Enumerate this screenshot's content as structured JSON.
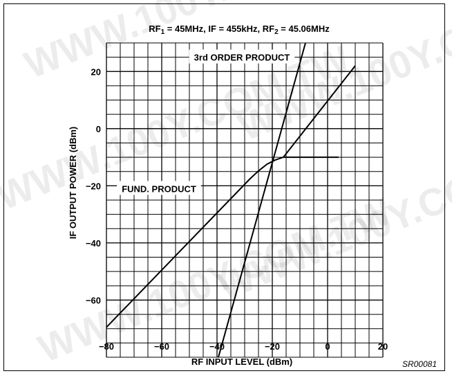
{
  "figure_code": "SR00081",
  "watermark_text": "WWW.100Y.COM.TW",
  "colors": {
    "line": "#000000",
    "grid": "#000000",
    "background": "#ffffff"
  },
  "chart_data": {
    "type": "line",
    "title_parts": [
      {
        "text": "RF",
        "sub": "1",
        "after": " = 45MHz, IF = 455kHz, RF"
      },
      {
        "text": "",
        "sub": "2",
        "after": " = 45.06MHz"
      }
    ],
    "xlabel": "RF INPUT LEVEL (dBm)",
    "ylabel": "IF OUTPUT POWER (dBm)",
    "xlim": [
      -80,
      20
    ],
    "ylim": [
      -80,
      30
    ],
    "x_ticks": [
      -80,
      -60,
      -40,
      -20,
      0,
      20
    ],
    "y_ticks": [
      20,
      0,
      -20,
      -40,
      -60
    ],
    "x_tick_labels": [
      "−80",
      "−60",
      "−40",
      "−20",
      "0",
      "20"
    ],
    "y_tick_labels": [
      "20",
      "0",
      "−20",
      "−40",
      "−60"
    ],
    "grid": true,
    "grid_minor_step": 5,
    "series": [
      {
        "name": "FUND. PRODUCT",
        "points": [
          [
            -80,
            -69.5
          ],
          [
            -28,
            -17.5
          ],
          [
            -25,
            -14.8
          ],
          [
            -22,
            -12.5
          ],
          [
            -19,
            -11
          ],
          [
            -16,
            -10
          ],
          [
            -13,
            -10
          ],
          [
            4,
            -10
          ]
        ]
      },
      {
        "name": "3rd ORDER PRODUCT",
        "points": [
          [
            -39.5,
            -80
          ],
          [
            -8,
            30
          ]
        ]
      },
      {
        "name": "",
        "points": [
          [
            -16,
            -10
          ],
          [
            10,
            22
          ]
        ]
      }
    ],
    "annotations": [
      {
        "text": "3rd ORDER PRODUCT",
        "at": [
          -31,
          25
        ],
        "boxed": true
      },
      {
        "text": "FUND. PRODUCT",
        "at": [
          -61,
          -21
        ],
        "boxed": true
      }
    ]
  }
}
